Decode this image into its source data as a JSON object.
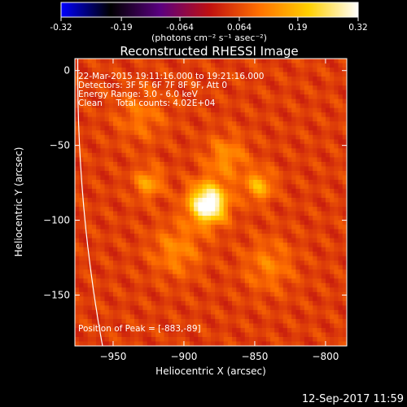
{
  "colorbar": {
    "ticks": [
      "-0.32",
      "-0.19",
      "-0.064",
      "0.064",
      "0.19",
      "0.32"
    ],
    "tick_values": [
      -0.32,
      -0.19,
      -0.064,
      0.064,
      0.19,
      0.32
    ],
    "range": [
      -0.32,
      0.32
    ],
    "unit_label": "(photons cm⁻² s⁻¹ asec⁻²)",
    "colors": [
      "#0000ff",
      "#000000",
      "#5a0080",
      "#c01010",
      "#ff7000",
      "#ffd000",
      "#ffffff"
    ]
  },
  "footer": {
    "timestamp": "12-Sep-2017 11:59"
  },
  "chart_data": {
    "type": "heatmap",
    "title": "Reconstructed RHESSI Image",
    "xlabel": "Heliocentric X (arcsec)",
    "ylabel": "Heliocentric Y (arcsec)",
    "xlim": [
      -977,
      -785
    ],
    "ylim": [
      -184,
      8
    ],
    "x_ticks": [
      -950,
      -900,
      -850,
      -800
    ],
    "y_ticks": [
      0,
      -50,
      -100,
      -150
    ],
    "x_tick_labels": [
      "−950",
      "−900",
      "−850",
      "−800"
    ],
    "y_tick_labels": [
      "0",
      "−50",
      "−100",
      "−150"
    ],
    "annotations": [
      "22-Mar-2015 19:11:16.000 to 19:21:16.000",
      "Detectors: 3F 5F 6F 7F 8F 9F, Att 0",
      "Energy Range: 3.0 - 6.0 keV",
      "Clean     Total counts: 4.02E+04"
    ],
    "peak_label": "Position of Peak = [-883,-89]",
    "peak": [
      -883,
      -89
    ],
    "sources": [
      {
        "x": -883,
        "y": -89,
        "amp": 0.32,
        "sigma": 9
      },
      {
        "x": -847,
        "y": -77,
        "amp": 0.13,
        "sigma": 7
      },
      {
        "x": -925,
        "y": -75,
        "amp": 0.11,
        "sigma": 7
      },
      {
        "x": -870,
        "y": -58,
        "amp": 0.09,
        "sigma": 10
      },
      {
        "x": -905,
        "y": -120,
        "amp": 0.08,
        "sigma": 12
      },
      {
        "x": -840,
        "y": -130,
        "amp": 0.07,
        "sigma": 12
      },
      {
        "x": -930,
        "y": -30,
        "amp": 0.06,
        "sigma": 12
      }
    ],
    "background_level": 0.05,
    "limb": {
      "center": [
        0,
        0
      ],
      "radius_arcsec": 975
    }
  }
}
